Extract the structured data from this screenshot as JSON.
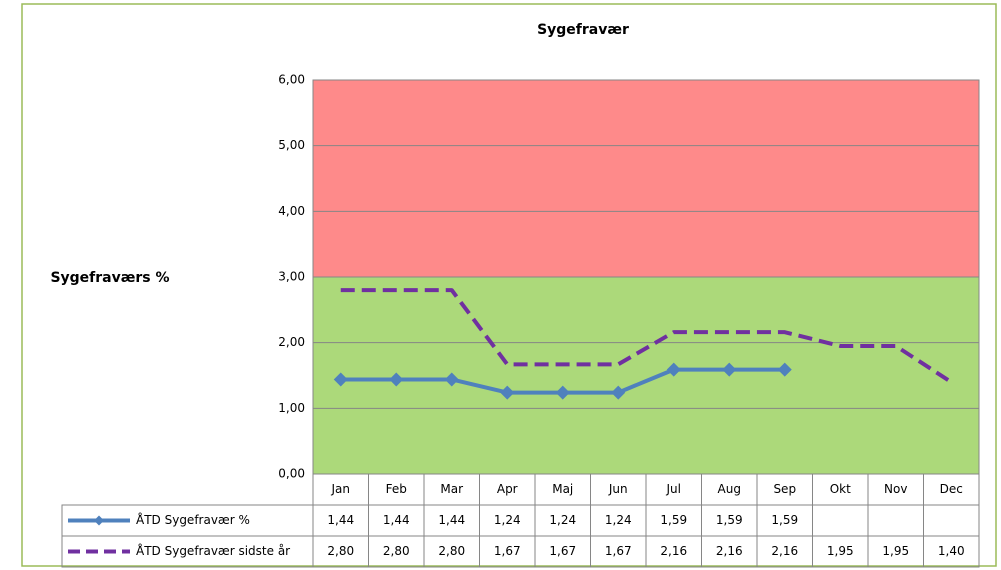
{
  "chart_data": {
    "type": "line",
    "title": "Sygefravær",
    "ylabel": "Sygefraværs %",
    "categories": [
      "Jan",
      "Feb",
      "Mar",
      "Apr",
      "Maj",
      "Jun",
      "Jul",
      "Aug",
      "Sep",
      "Okt",
      "Nov",
      "Dec"
    ],
    "series": [
      {
        "name": "ÅTD Sygefravær %",
        "color": "#4f81bd",
        "marker": "diamond",
        "dash": false,
        "values": [
          1.44,
          1.44,
          1.44,
          1.24,
          1.24,
          1.24,
          1.59,
          1.59,
          1.59,
          null,
          null,
          null
        ],
        "value_labels": [
          "1,44",
          "1,44",
          "1,44",
          "1,24",
          "1,24",
          "1,24",
          "1,59",
          "1,59",
          "1,59",
          null,
          null,
          null
        ]
      },
      {
        "name": "ÅTD Sygefravær sidste år",
        "color": "#7030a0",
        "marker": "none",
        "dash": true,
        "values": [
          2.8,
          2.8,
          2.8,
          1.67,
          1.67,
          1.67,
          2.16,
          2.16,
          2.16,
          1.95,
          1.95,
          1.4
        ],
        "value_labels": [
          "2,80",
          "2,80",
          "2,80",
          "1,67",
          "1,67",
          "1,67",
          "2,16",
          "2,16",
          "2,16",
          "1,95",
          "1,95",
          "1,40"
        ]
      }
    ],
    "ylim": [
      0,
      6
    ],
    "yticks": [
      {
        "value": 0,
        "label": "0,00"
      },
      {
        "value": 1,
        "label": "1,00"
      },
      {
        "value": 2,
        "label": "2,00"
      },
      {
        "value": 3,
        "label": "3,00"
      },
      {
        "value": 4,
        "label": "4,00"
      },
      {
        "value": 5,
        "label": "5,00"
      },
      {
        "value": 6,
        "label": "6,00"
      }
    ],
    "grid": true,
    "bands": [
      {
        "from": 0,
        "to": 3,
        "color": "#acd97a"
      },
      {
        "from": 3,
        "to": 6,
        "color": "#fe8a8a"
      }
    ],
    "data_table": true
  }
}
